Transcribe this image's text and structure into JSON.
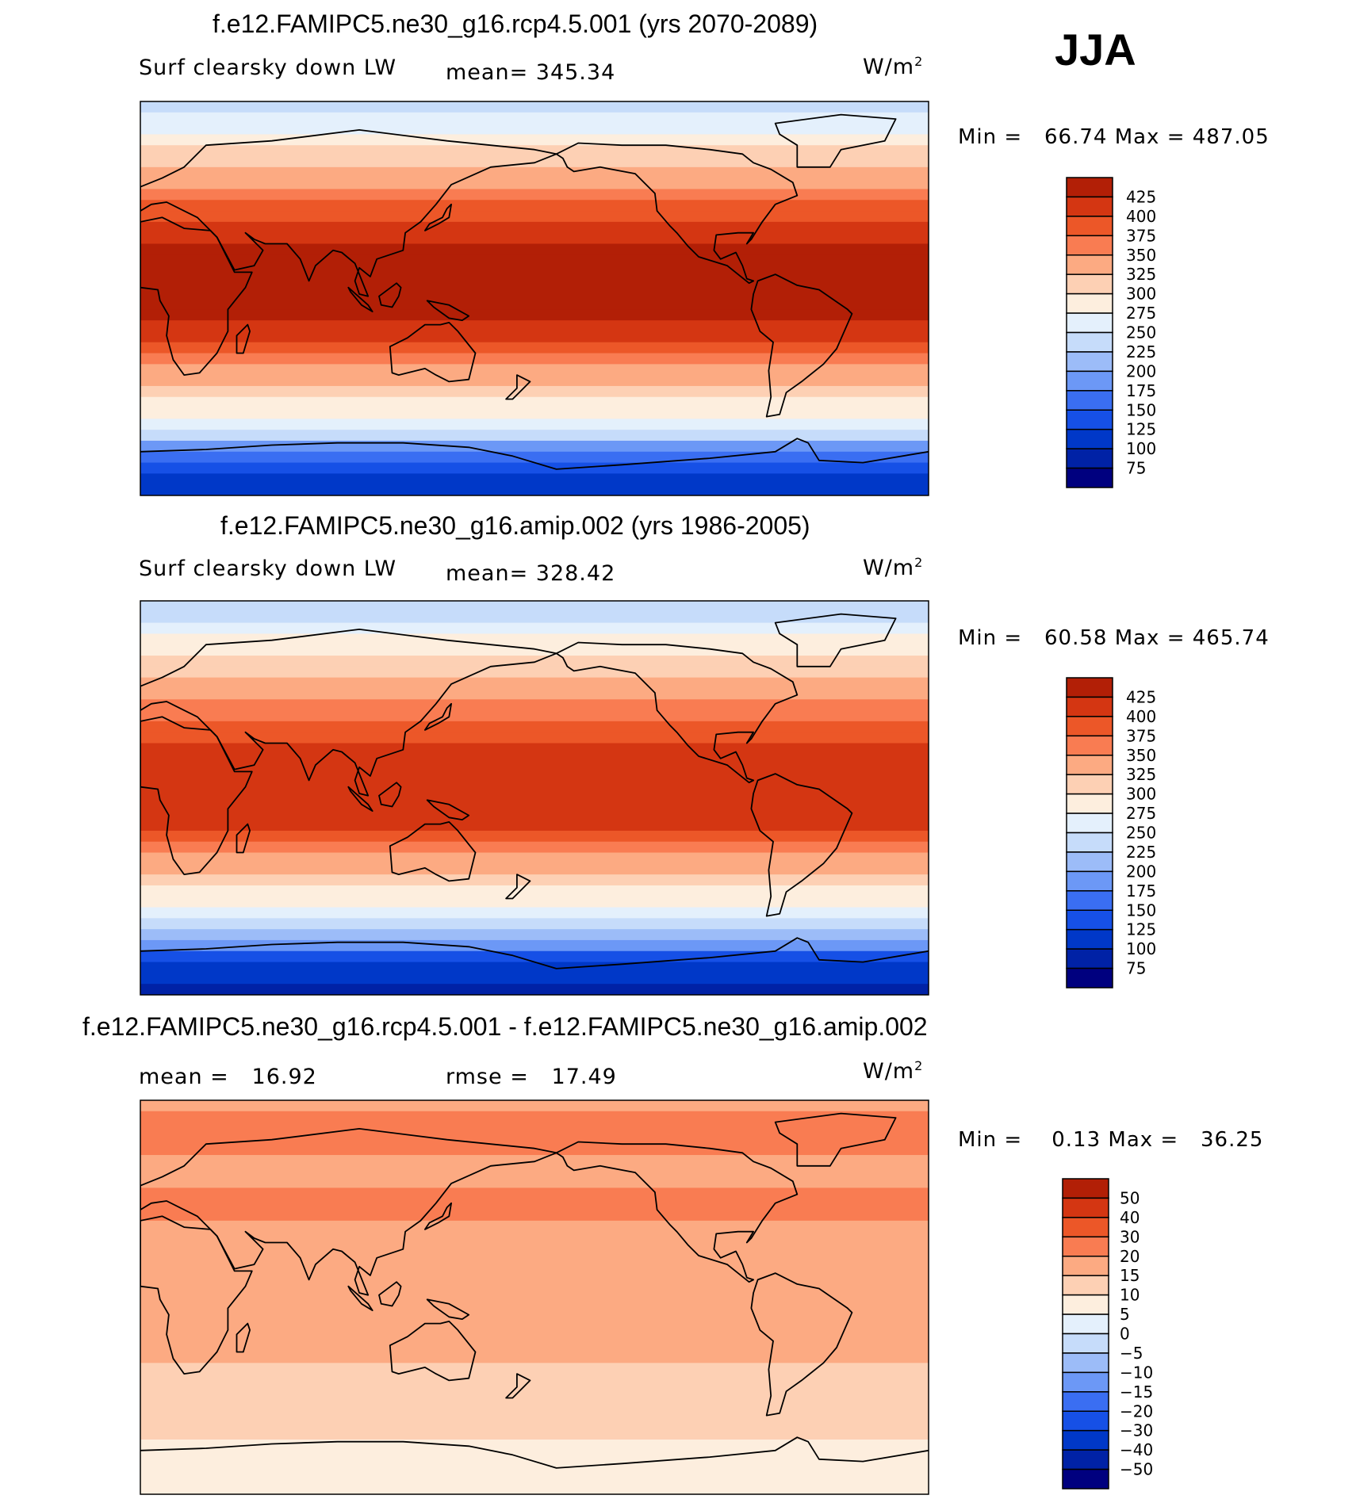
{
  "season": "JJA",
  "colors": {
    "abs": [
      "#00007f",
      "#0022a6",
      "#0038c8",
      "#1650e6",
      "#3a6ef2",
      "#6c98f6",
      "#9cbcf8",
      "#c6dcfa",
      "#e4f0fc",
      "#fdeede",
      "#fdd0b4",
      "#fcaa82",
      "#f97c52",
      "#ec5728",
      "#d43612",
      "#b21f06",
      "#8c0f03"
    ],
    "diff": [
      "#00007f",
      "#0022a6",
      "#0038c8",
      "#1650e6",
      "#3a6ef2",
      "#6c98f6",
      "#9cbcf8",
      "#c6dcfa",
      "#e4f0fc",
      "#fdeede",
      "#fdd0b4",
      "#fcaa82",
      "#f97c52",
      "#ec5728",
      "#d43612",
      "#b21f06",
      "#8c0f03"
    ]
  },
  "panels": [
    {
      "title": "f.e12.FAMIPC5.ne30_g16.rcp4.5.001 (yrs 2070-2089)",
      "left_label": "Surf clearsky down LW",
      "center_label": "mean= 345.34",
      "units": "W/m",
      "units_sup": "2",
      "min_label": "Min =",
      "min_value": "66.74",
      "max_label": "Max =",
      "max_value": "487.05"
    },
    {
      "title": "f.e12.FAMIPC5.ne30_g16.amip.002 (yrs 1986-2005)",
      "left_label": "Surf clearsky down LW",
      "center_label": "mean= 328.42",
      "units": "W/m",
      "units_sup": "2",
      "min_label": "Min =",
      "min_value": "60.58",
      "max_label": "Max =",
      "max_value": "465.74"
    },
    {
      "title": "f.e12.FAMIPC5.ne30_g16.rcp4.5.001 - f.e12.FAMIPC5.ne30_g16.amip.002",
      "left_label": "mean =   16.92",
      "center_label": "rmse =   17.49",
      "units": "W/m",
      "units_sup": "2",
      "min_label": "Min =",
      "min_value": "0.13",
      "max_label": "Max =",
      "max_value": "36.25"
    }
  ],
  "chart_data": [
    {
      "type": "heatmap",
      "title": "f.e12.FAMIPC5.ne30_g16.rcp4.5.001 (yrs 2070-2089)",
      "variable": "Surf clearsky down LW",
      "units": "W/m2",
      "mean": 345.34,
      "min": 66.74,
      "max": 487.05,
      "colorbar_levels": [
        425,
        400,
        375,
        350,
        325,
        300,
        275,
        250,
        225,
        200,
        175,
        150,
        125,
        100,
        75
      ],
      "x_range": [
        0,
        360
      ],
      "y_range": [
        -90,
        90
      ],
      "zonal_profile": {
        "lat": [
          90,
          80,
          70,
          60,
          50,
          40,
          30,
          20,
          10,
          0,
          -10,
          -20,
          -30,
          -40,
          -50,
          -60,
          -70,
          -80,
          -90
        ],
        "value": [
          240,
          262,
          300,
          330,
          350,
          385,
          415,
          435,
          440,
          440,
          430,
          395,
          355,
          320,
          290,
          250,
          175,
          120,
          95
        ]
      }
    },
    {
      "type": "heatmap",
      "title": "f.e12.FAMIPC5.ne30_g16.amip.002 (yrs 1986-2005)",
      "variable": "Surf clearsky down LW",
      "units": "W/m2",
      "mean": 328.42,
      "min": 60.58,
      "max": 465.74,
      "colorbar_levels": [
        425,
        400,
        375,
        350,
        325,
        300,
        275,
        250,
        225,
        200,
        175,
        150,
        125,
        100,
        75
      ],
      "x_range": [
        0,
        360
      ],
      "y_range": [
        -90,
        90
      ],
      "zonal_profile": {
        "lat": [
          90,
          80,
          70,
          60,
          50,
          40,
          30,
          20,
          10,
          0,
          -10,
          -20,
          -30,
          -40,
          -50,
          -60,
          -70,
          -80,
          -90
        ],
        "value": [
          228,
          250,
          285,
          312,
          333,
          365,
          395,
          412,
          420,
          420,
          410,
          375,
          335,
          302,
          272,
          235,
          160,
          110,
          85
        ]
      }
    },
    {
      "type": "heatmap",
      "title": "f.e12.FAMIPC5.ne30_g16.rcp4.5.001 - f.e12.FAMIPC5.ne30_g16.amip.002",
      "units": "W/m2",
      "mean": 16.92,
      "rmse": 17.49,
      "min": 0.13,
      "max": 36.25,
      "colorbar_levels": [
        50,
        40,
        30,
        20,
        15,
        10,
        5,
        0,
        -5,
        -10,
        -15,
        -20,
        -30,
        -40,
        -50
      ],
      "x_range": [
        0,
        360
      ],
      "y_range": [
        -90,
        90
      ],
      "zonal_profile": {
        "lat": [
          90,
          80,
          70,
          60,
          50,
          40,
          30,
          20,
          10,
          0,
          -10,
          -20,
          -30,
          -40,
          -50,
          -60,
          -70,
          -80,
          -90
        ],
        "value": [
          18,
          22,
          21,
          19,
          20,
          21,
          19,
          18,
          18,
          18,
          17,
          16,
          15,
          14,
          13,
          12,
          8,
          6,
          5
        ]
      }
    }
  ]
}
